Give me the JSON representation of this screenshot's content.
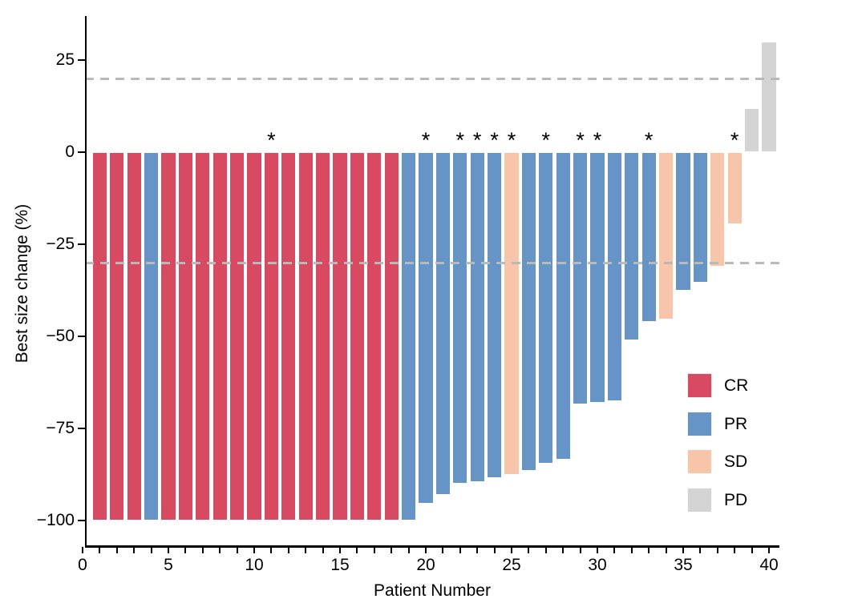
{
  "chart_data": {
    "type": "bar",
    "title": "",
    "xlabel": "Patient Number",
    "ylabel": "Best size change (%)",
    "x_ticks": [
      0,
      5,
      10,
      15,
      20,
      25,
      30,
      35,
      40
    ],
    "x_minor_tick_step": 1,
    "x_range": [
      0,
      40
    ],
    "ylim": [
      -107,
      36
    ],
    "y_ticks": [
      25,
      0,
      -25,
      -50,
      -75,
      -100
    ],
    "reference_lines": [
      20,
      -30
    ],
    "reference_line_style": "dashed",
    "reference_line_color": "#b9b9b9",
    "grid": "off",
    "legend_position": "inside-right",
    "legend": [
      "CR",
      "PR",
      "SD",
      "PD"
    ],
    "colors": {
      "CR": "#D84A62",
      "PR": "#6794C7",
      "SD": "#F7C5A9",
      "PD": "#D4D4D4"
    },
    "annotation_symbol": "*",
    "annotated_patients": [
      11,
      20,
      22,
      23,
      24,
      25,
      27,
      29,
      30,
      33,
      38
    ],
    "patients": [
      {
        "patient": 1,
        "value": -100,
        "response": "CR",
        "annotated": false
      },
      {
        "patient": 2,
        "value": -100,
        "response": "CR",
        "annotated": false
      },
      {
        "patient": 3,
        "value": -100,
        "response": "CR",
        "annotated": false
      },
      {
        "patient": 4,
        "value": -100,
        "response": "PR",
        "annotated": false
      },
      {
        "patient": 5,
        "value": -100,
        "response": "CR",
        "annotated": false
      },
      {
        "patient": 6,
        "value": -100,
        "response": "CR",
        "annotated": false
      },
      {
        "patient": 7,
        "value": -100,
        "response": "CR",
        "annotated": false
      },
      {
        "patient": 8,
        "value": -100,
        "response": "CR",
        "annotated": false
      },
      {
        "patient": 9,
        "value": -100,
        "response": "CR",
        "annotated": false
      },
      {
        "patient": 10,
        "value": -100,
        "response": "CR",
        "annotated": false
      },
      {
        "patient": 11,
        "value": -100,
        "response": "CR",
        "annotated": true
      },
      {
        "patient": 12,
        "value": -100,
        "response": "CR",
        "annotated": false
      },
      {
        "patient": 13,
        "value": -100,
        "response": "CR",
        "annotated": false
      },
      {
        "patient": 14,
        "value": -100,
        "response": "CR",
        "annotated": false
      },
      {
        "patient": 15,
        "value": -100,
        "response": "CR",
        "annotated": false
      },
      {
        "patient": 16,
        "value": -100,
        "response": "CR",
        "annotated": false
      },
      {
        "patient": 17,
        "value": -100,
        "response": "CR",
        "annotated": false
      },
      {
        "patient": 18,
        "value": -100,
        "response": "CR",
        "annotated": false
      },
      {
        "patient": 19,
        "value": -100,
        "response": "PR",
        "annotated": false
      },
      {
        "patient": 20,
        "value": -95.5,
        "response": "PR",
        "annotated": true
      },
      {
        "patient": 21,
        "value": -93,
        "response": "PR",
        "annotated": false
      },
      {
        "patient": 22,
        "value": -90,
        "response": "PR",
        "annotated": true
      },
      {
        "patient": 23,
        "value": -89.5,
        "response": "PR",
        "annotated": true
      },
      {
        "patient": 24,
        "value": -88.5,
        "response": "PR",
        "annotated": true
      },
      {
        "patient": 25,
        "value": -87.5,
        "response": "SD",
        "annotated": true
      },
      {
        "patient": 26,
        "value": -86.5,
        "response": "PR",
        "annotated": false
      },
      {
        "patient": 27,
        "value": -84.5,
        "response": "PR",
        "annotated": true
      },
      {
        "patient": 28,
        "value": -83.5,
        "response": "PR",
        "annotated": false
      },
      {
        "patient": 29,
        "value": -68.5,
        "response": "PR",
        "annotated": true
      },
      {
        "patient": 30,
        "value": -68,
        "response": "PR",
        "annotated": true
      },
      {
        "patient": 31,
        "value": -67.5,
        "response": "PR",
        "annotated": false
      },
      {
        "patient": 32,
        "value": -51,
        "response": "PR",
        "annotated": false
      },
      {
        "patient": 33,
        "value": -46,
        "response": "PR",
        "annotated": true
      },
      {
        "patient": 34,
        "value": -45.5,
        "response": "SD",
        "annotated": false
      },
      {
        "patient": 35,
        "value": -37.5,
        "response": "PR",
        "annotated": false
      },
      {
        "patient": 36,
        "value": -35.5,
        "response": "PR",
        "annotated": false
      },
      {
        "patient": 37,
        "value": -31,
        "response": "SD",
        "annotated": false
      },
      {
        "patient": 38,
        "value": -19.5,
        "response": "SD",
        "annotated": true
      },
      {
        "patient": 39,
        "value": 12,
        "response": "PD",
        "annotated": false
      },
      {
        "patient": 40,
        "value": 30,
        "response": "PD",
        "annotated": false
      }
    ]
  }
}
